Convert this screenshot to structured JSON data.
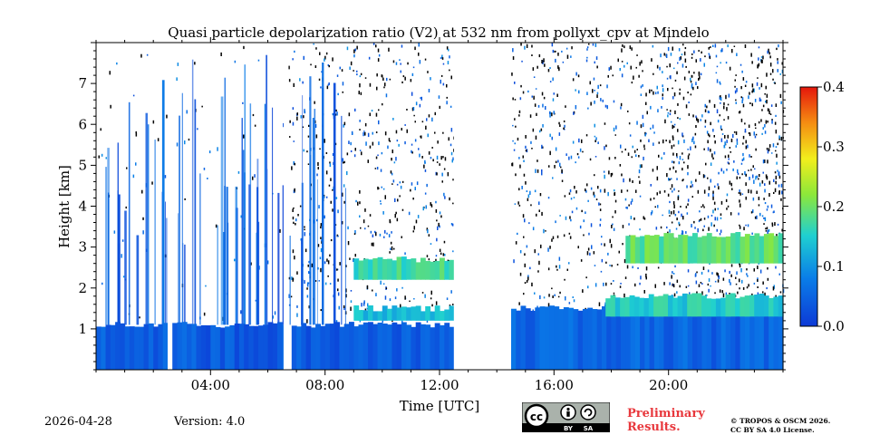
{
  "chart_data": {
    "type": "heatmap",
    "title": "Quasi particle depolarization ratio (V2) at 532 nm from pollyxt_cpv at Mindelo",
    "xlabel": "Time [UTC]",
    "ylabel": "Height [km]",
    "xlim_hours": [
      0,
      24
    ],
    "ylim_km": [
      0,
      8
    ],
    "x_tick_hours": [
      4,
      8,
      12,
      16,
      20
    ],
    "x_tick_labels": [
      "04:00",
      "08:00",
      "12:00",
      "16:00",
      "20:00"
    ],
    "y_ticks": [
      1,
      2,
      3,
      4,
      5,
      6,
      7
    ],
    "y_tick_labels": [
      "1",
      "2",
      "3",
      "4",
      "5",
      "6",
      "7"
    ],
    "colorbar": {
      "range": [
        0.0,
        0.4
      ],
      "ticks": [
        0.0,
        0.1,
        0.2,
        0.3,
        0.4
      ],
      "tick_labels": [
        "0.0",
        "0.1",
        "0.2",
        "0.3",
        "0.4"
      ],
      "colormap": "jet"
    },
    "data_gaps_hours": [
      [
        2.5,
        2.65
      ],
      [
        6.55,
        6.72
      ],
      [
        12.5,
        14.5
      ]
    ],
    "layers": [
      {
        "name": "boundary-layer",
        "start_h": 0.0,
        "end_h": 12.5,
        "bottom_km": 0.0,
        "top_km": 1.1,
        "value": 0.04
      },
      {
        "name": "boundary-layer-evening",
        "start_h": 14.5,
        "end_h": 24.0,
        "bottom_km": 0.0,
        "top_km": 1.5,
        "value": 0.05
      },
      {
        "name": "elevated-dust-morning",
        "start_h": 9.0,
        "end_h": 12.5,
        "bottom_km": 2.2,
        "top_km": 2.7,
        "value": 0.17
      },
      {
        "name": "thin-layer-morning",
        "start_h": 9.0,
        "end_h": 12.5,
        "bottom_km": 1.2,
        "top_km": 1.5,
        "value": 0.14
      },
      {
        "name": "elevated-dust-evening",
        "start_h": 18.5,
        "end_h": 24.0,
        "bottom_km": 2.6,
        "top_km": 3.3,
        "value": 0.19
      },
      {
        "name": "lower-layer-evening",
        "start_h": 17.8,
        "end_h": 24.0,
        "bottom_km": 1.3,
        "top_km": 1.8,
        "value": 0.15
      }
    ]
  },
  "footer": {
    "date": "2026-04-28",
    "version": "Version: 4.0",
    "preliminary_line1": "Preliminary",
    "preliminary_line2": "Results.",
    "copyright_line1": "© TROPOS & OSCM 2026.",
    "copyright_line2": "CC BY SA 4.0 License.",
    "license_badge": {
      "cc": "cc",
      "by": "BY",
      "sa": "SA"
    }
  },
  "colors": {
    "background": "#ffffff",
    "noise": "#000000",
    "preliminary_text": "#e8383d",
    "badge_bg": "#aab2ab"
  }
}
